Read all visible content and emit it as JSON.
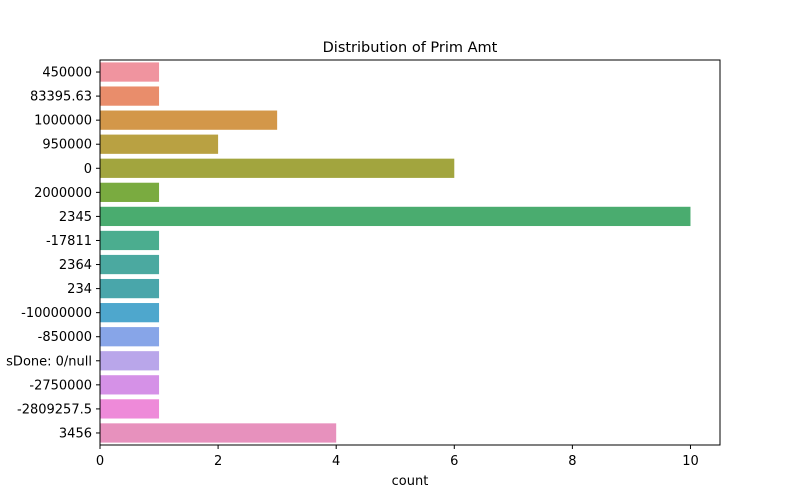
{
  "chart_data": {
    "type": "bar",
    "orientation": "horizontal",
    "title": "Distribution of Prim Amt",
    "xlabel": "count",
    "ylabel": "",
    "xlim": [
      0,
      10.5
    ],
    "xticks": [
      0,
      2,
      4,
      6,
      8,
      10
    ],
    "grid": false,
    "categories": [
      "450000",
      "83395.63",
      "1000000",
      "950000",
      "0",
      "2000000",
      "2345",
      "-17811",
      "2364",
      "234",
      "-10000000",
      "-850000",
      "sDone: 0/null",
      "-2750000",
      "-2809257.5",
      "3456"
    ],
    "values": [
      1,
      1,
      3,
      2,
      6,
      1,
      10,
      1,
      1,
      1,
      1,
      1,
      1,
      1,
      1,
      4
    ],
    "colors": [
      "#f0949f",
      "#e98d6b",
      "#d39749",
      "#b9a142",
      "#a2a53e",
      "#7aab40",
      "#4aac6f",
      "#4bad8f",
      "#4ba9a0",
      "#49a6aa",
      "#4ea7cd",
      "#87a5e8",
      "#b9a6ea",
      "#d591e7",
      "#ee8ad9",
      "#e791bd"
    ]
  }
}
